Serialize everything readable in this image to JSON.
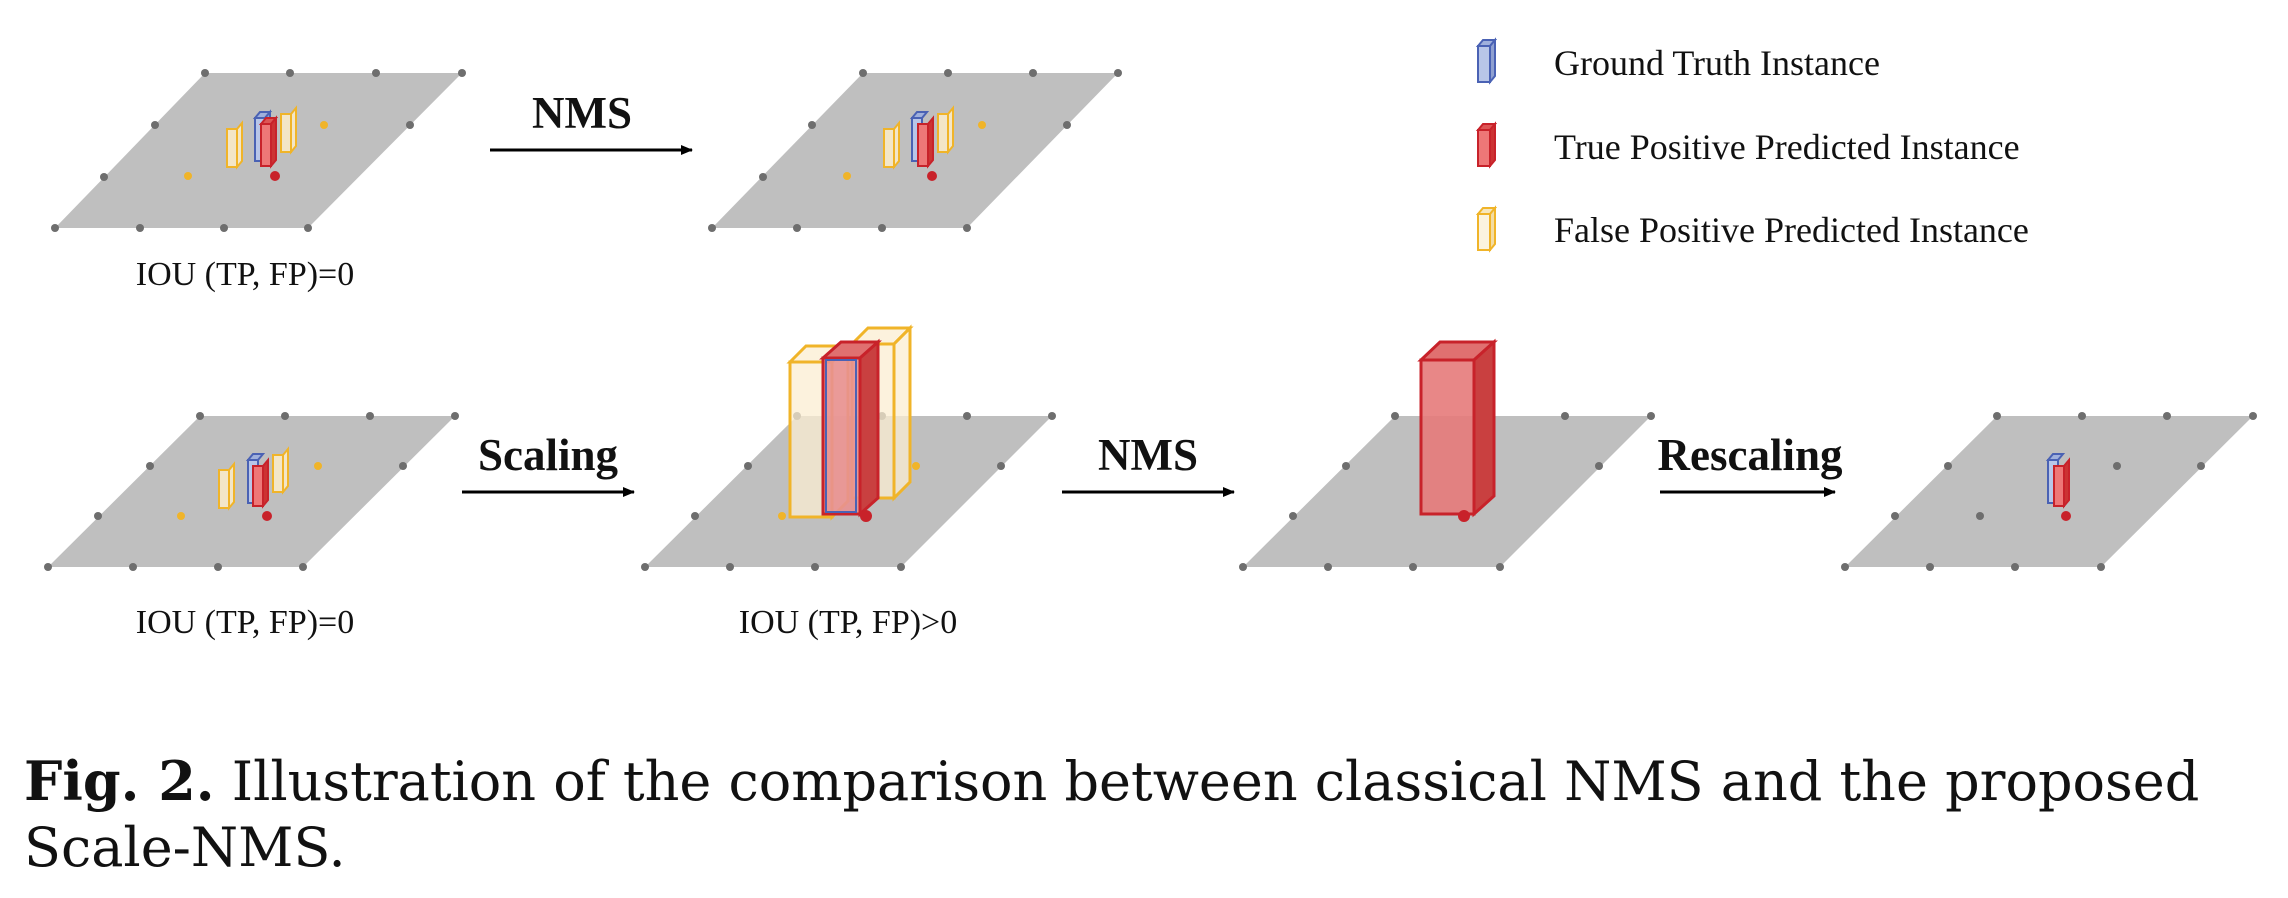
{
  "legend": {
    "gt": "Ground Truth Instance",
    "tp": "True Positive Predicted Instance",
    "fp": "False Positive Predicted Instance"
  },
  "arrows": {
    "top_nms": "NMS",
    "scaling": "Scaling",
    "bottom_nms": "NMS",
    "rescaling": "Rescaling"
  },
  "iou_labels": {
    "top_left": "IOU (TP, FP)=0",
    "bottom_left": "IOU (TP, FP)=0",
    "bottom_scaled": "IOU (TP, FP)>0"
  },
  "caption": {
    "label": "Fig. 2.",
    "text": " Illustration of the comparison between classical NMS and the proposed Scale-NMS."
  },
  "colors": {
    "ground_truth": "#4a62b4",
    "true_positive": "#c8222a",
    "false_positive": "#f0b429",
    "plane": "#bfbfbf",
    "grid_dot": "#6e6e6e"
  }
}
